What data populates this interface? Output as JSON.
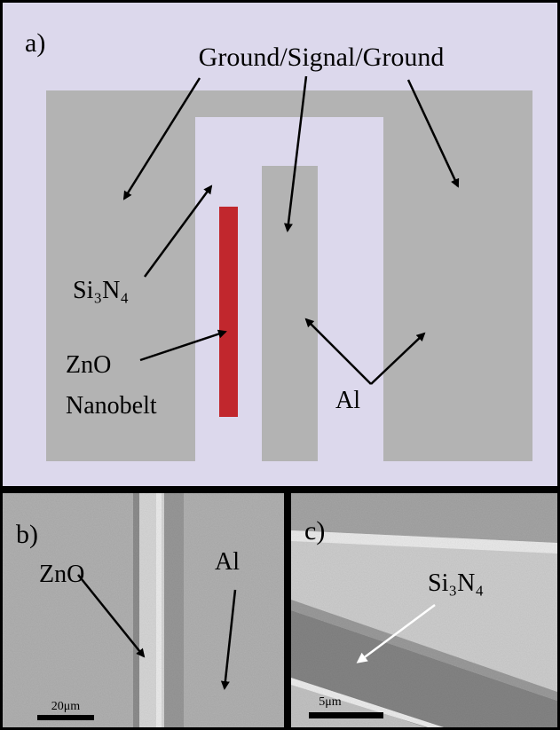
{
  "panel_a": {
    "label": "a)",
    "title": "Ground/Signal/Ground",
    "si3n4_label": "Si₃N₄",
    "zno_label": [
      "ZnO",
      "Nanobelt"
    ],
    "al_label": "Al"
  },
  "panel_b": {
    "label": "b)",
    "zno_label": "ZnO",
    "al_label": "Al",
    "scale_bar": "20μm"
  },
  "panel_c": {
    "label": "c)",
    "si3n4_label": "Si₃N₄",
    "scale_bar": "5μm"
  }
}
